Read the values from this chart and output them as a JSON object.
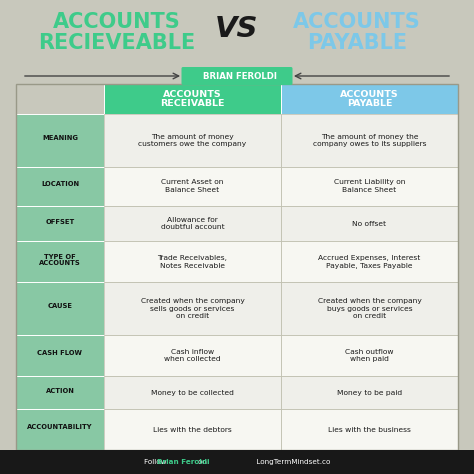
{
  "title_left": "ACCOUNTS\nRECIEVEABLE",
  "title_vs": "VS",
  "title_right": "ACCOUNTS\nPAYABLE",
  "title_left_color": "#3ecb8a",
  "title_right_color": "#7dc8e8",
  "title_vs_color": "#1a1a1a",
  "author": "  BRIAN FEROLDI",
  "bg_color": "#c8c8bc",
  "header_ar_color": "#3ecb8a",
  "header_ap_color": "#7dc8e8",
  "header_ar_text": "ACCOUNTS\nRECEIVABLE",
  "header_ap_text": "ACCOUNTS\nPAYABLE",
  "row_label_bg": "#80c8a0",
  "row_data_bg": "#f0f0e8",
  "footer_bg": "#181818",
  "rows": [
    {
      "label": "MEANING",
      "ar": "The amount of money\ncustomers owe the company",
      "ap": "The amount of money the\ncompany owes to its suppliers"
    },
    {
      "label": "LOCATION",
      "ar": "Current Asset on\nBalance Sheet",
      "ap": "Current Liability on\nBalance Sheet"
    },
    {
      "label": "OFFSET",
      "ar": "Allowance for\ndoubtful account",
      "ap": "No offset"
    },
    {
      "label": "TYPE OF\nACCOUNTS",
      "ar": "Trade Receivables,\nNotes Receivable",
      "ap": "Accrued Expenses, Interest\nPayable, Taxes Payable"
    },
    {
      "label": "CAUSE",
      "ar": "Created when the company\nsells goods or services\non credit",
      "ap": "Created when the company\nbuys goods or services\non credit"
    },
    {
      "label": "CASH FLOW",
      "ar": "Cash inflow\nwhen collected",
      "ap": "Cash outflow\nwhen paid"
    },
    {
      "label": "ACTION",
      "ar": "Money to be collected",
      "ap": "Money to be paid"
    },
    {
      "label": "ACCOUNTABILITY",
      "ar": "Lies with the debtors",
      "ap": "Lies with the business"
    }
  ]
}
